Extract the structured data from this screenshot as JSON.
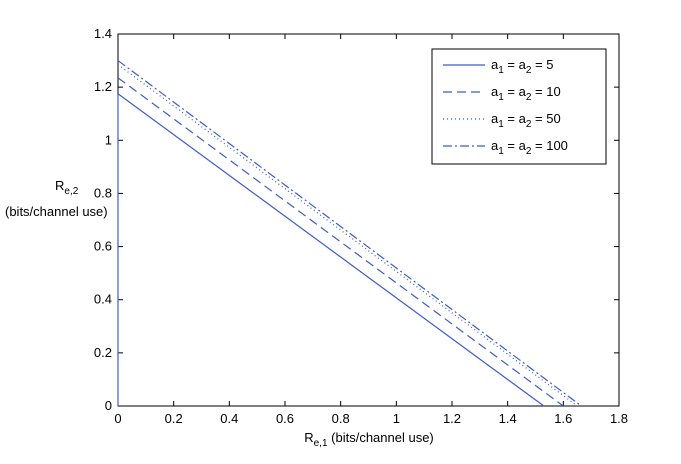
{
  "chart_data": {
    "type": "line",
    "xlabel": {
      "main": "R",
      "sub": "e,1",
      "rest": " (bits/channel use)"
    },
    "ylabel": {
      "main": "R",
      "sub": "e,2",
      "line2": "(bits/channel use)"
    },
    "xlim": [
      0,
      1.8
    ],
    "ylim": [
      0,
      1.4
    ],
    "xticks": [
      "0",
      "0.2",
      "0.4",
      "0.6",
      "0.8",
      "1",
      "1.2",
      "1.4",
      "1.6",
      "1.8"
    ],
    "yticks": [
      "0",
      "0.2",
      "0.4",
      "0.6",
      "0.8",
      "1",
      "1.2",
      "1.4"
    ],
    "grid": false,
    "legend_position": "top-right",
    "line_color": "#3d5ccc",
    "series": [
      {
        "name": "a1 = a2 = 5",
        "legend": {
          "a": "a",
          "s1": "1",
          "eq": " = a",
          "s2": "2",
          "val": " = 5"
        },
        "style": "solid",
        "x": [
          0,
          1.53
        ],
        "y": [
          1.175,
          0
        ]
      },
      {
        "name": "a1 = a2 = 10",
        "legend": {
          "a": "a",
          "s1": "1",
          "eq": " = a",
          "s2": "2",
          "val": " = 10"
        },
        "style": "dashed",
        "x": [
          0,
          1.6
        ],
        "y": [
          1.235,
          0
        ]
      },
      {
        "name": "a1 = a2 = 50",
        "legend": {
          "a": "a",
          "s1": "1",
          "eq": " = a",
          "s2": "2",
          "val": " = 50"
        },
        "style": "dotted",
        "x": [
          0,
          1.65
        ],
        "y": [
          1.285,
          0
        ]
      },
      {
        "name": "a1 = a2 = 100",
        "legend": {
          "a": "a",
          "s1": "1",
          "eq": " = a",
          "s2": "2",
          "val": " = 100"
        },
        "style": "dashdot",
        "x": [
          0,
          1.665
        ],
        "y": [
          1.3,
          0
        ]
      }
    ]
  }
}
